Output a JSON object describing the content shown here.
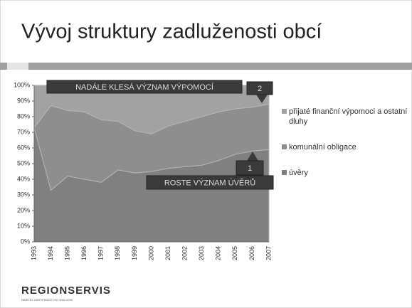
{
  "chart_data": {
    "type": "area",
    "stacked": true,
    "title": "Vývoj struktury zadluženosti obcí",
    "categories": [
      "1993",
      "1994",
      "1995",
      "1996",
      "1997",
      "1998",
      "1999",
      "2000",
      "2001",
      "2002",
      "2003",
      "2004",
      "2005",
      "2006",
      "2007"
    ],
    "series": [
      {
        "name": "úvěry",
        "color": "#808080",
        "values": [
          73,
          33,
          42,
          40,
          38,
          46,
          44,
          45,
          47,
          48,
          49,
          52,
          56,
          58,
          59
        ]
      },
      {
        "name": "komunální obligace",
        "color": "#8e8e8e",
        "values": [
          0,
          54,
          42,
          43,
          40,
          31,
          27,
          24,
          27,
          29,
          31,
          31,
          29,
          28,
          29
        ]
      },
      {
        "name": "přijaté finanční výpomoci a ostatní dluhy",
        "color": "#a2a2a2",
        "values": [
          27,
          13,
          16,
          17,
          22,
          23,
          29,
          31,
          26,
          23,
          20,
          17,
          15,
          14,
          12
        ]
      }
    ],
    "ylim": [
      0,
      100
    ],
    "yticks": [
      {
        "value": 0,
        "label": "0%"
      },
      {
        "value": 10,
        "label": "10%"
      },
      {
        "value": 20,
        "label": "20%"
      },
      {
        "value": 30,
        "label": "30%"
      },
      {
        "value": 40,
        "label": "40%"
      },
      {
        "value": 50,
        "label": "50%"
      },
      {
        "value": 60,
        "label": "60%"
      },
      {
        "value": 70,
        "label": "70%"
      },
      {
        "value": 80,
        "label": "80%"
      },
      {
        "value": 90,
        "label": "90%"
      },
      {
        "value": 100,
        "label": "100%"
      }
    ],
    "legend": "right",
    "annotations": [
      "NADÁLE KLESÁ VÝZNAM VÝPOMOCÍ",
      "2",
      "ROSTE VÝZNAM ÚVĚRŮ",
      "1"
    ]
  },
  "logo": {
    "name": "REGIONSERVIS",
    "tagline": "DRŽITEL CERTIFIKACE ISO 9001:2000"
  }
}
